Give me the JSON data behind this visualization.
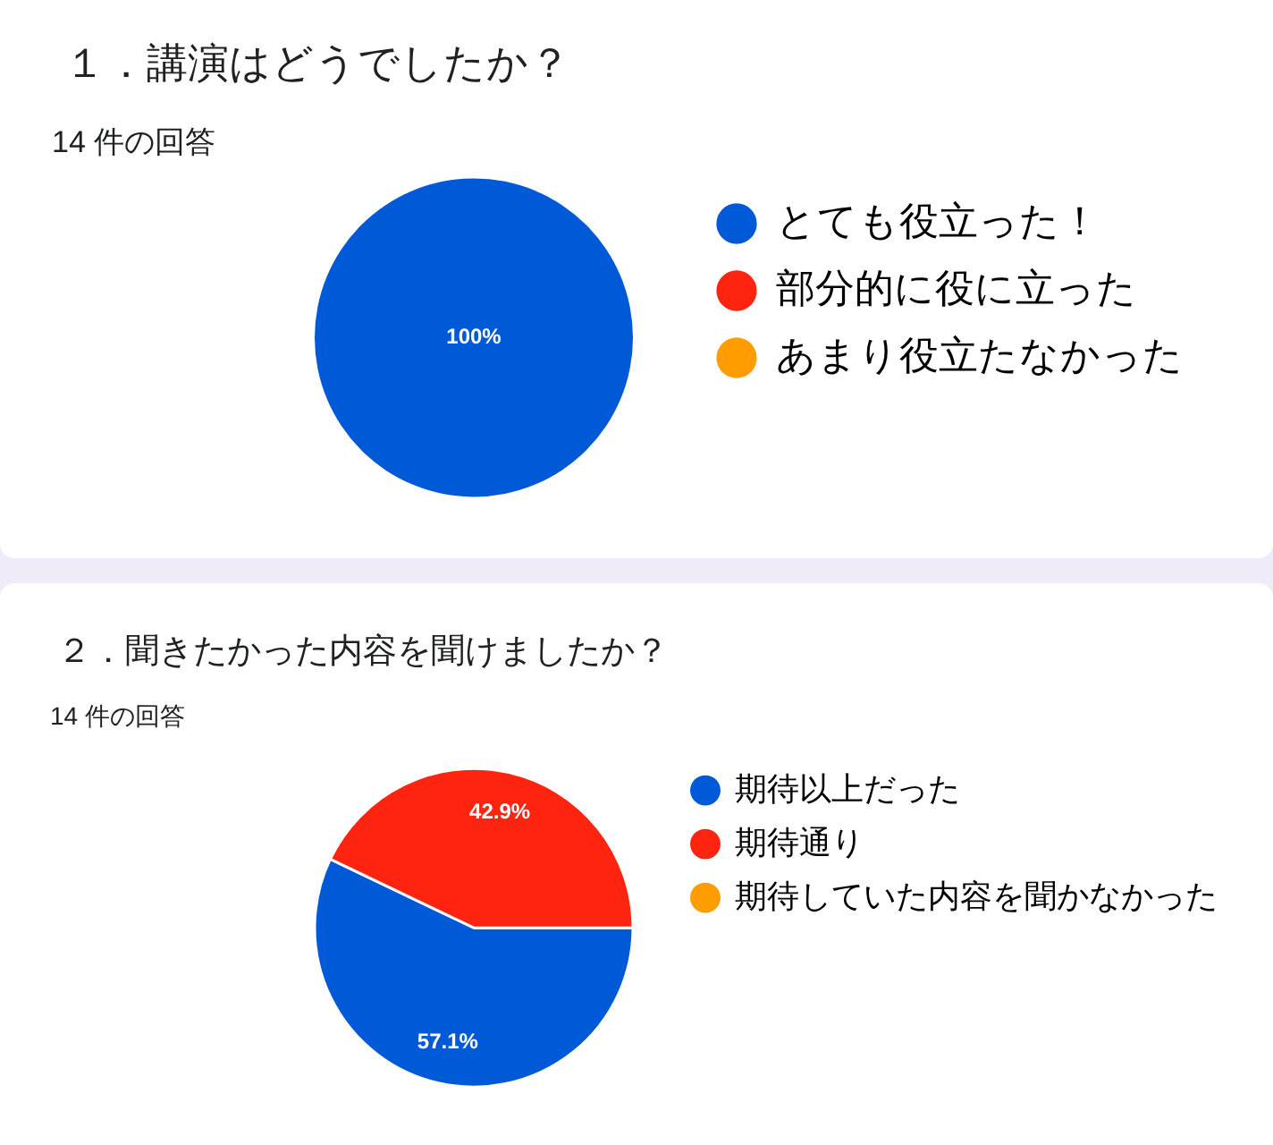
{
  "chart_data": [
    {
      "type": "pie",
      "title": "１．講演はどうでしたか？",
      "subtitle": "14 件の回答",
      "categories": [
        "とても役立った！",
        "部分的に役に立った",
        "あまり役立たなかった"
      ],
      "values": [
        100,
        0,
        0
      ],
      "colors": [
        "#0059d6",
        "#ff2410",
        "#ff9c00"
      ],
      "value_labels": [
        "100%",
        null,
        null
      ],
      "legend": "top right"
    },
    {
      "type": "pie",
      "title": "２．聞きたかった内容を聞けましたか？",
      "subtitle": "14 件の回答",
      "categories": [
        "期待以上だった",
        "期待通り",
        "期待していた内容を聞かなかった"
      ],
      "values": [
        57.1,
        42.9,
        0
      ],
      "colors": [
        "#0059d6",
        "#ff2410",
        "#ff9c00"
      ],
      "value_labels": [
        "57.1%",
        "42.9%",
        null
      ],
      "legend": "top right"
    }
  ]
}
